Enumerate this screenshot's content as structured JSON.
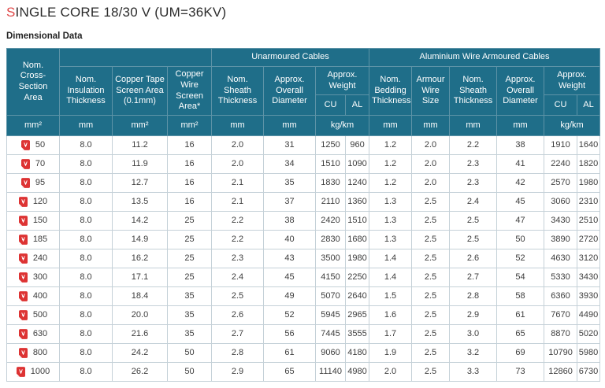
{
  "page": {
    "title_accent": "S",
    "title_rest": "INGLE CORE 18/30 V (UM=36KV)",
    "subtitle": "Dimensional Data"
  },
  "colors": {
    "header_teal": "#1f6e89",
    "header_border": "#5d93a7",
    "accent_red": "#e04848",
    "pdf_icon_red": "#dd3333",
    "area_label_teal": "#45798e",
    "data_border": "#c5d1d8"
  },
  "icons": {
    "pdf": "pdf-file-icon"
  },
  "table": {
    "groups": {
      "unarmoured": "Unarmoured Cables",
      "armoured": "Aluminium Wire Armoured Cables"
    },
    "columns": {
      "cross_section": "Nom. Cross-Section Area",
      "insulation": "Nom. Insulation Thickness",
      "copper_tape": "Copper Tape Screen Area (0.1mm)",
      "copper_wire": "Copper Wire Screen Area*",
      "sheath_unarmoured": "Nom. Sheath Thickness",
      "diameter_unarmoured": "Approx. Overall Diameter",
      "weight_unarmoured": "Approx. Weight",
      "cu": "CU",
      "al": "AL",
      "bedding": "Nom. Bedding Thickness",
      "armour_wire": "Armour Wire Size",
      "sheath_armoured": "Nom. Sheath Thickness",
      "diameter_armoured": "Approx. Overall Diameter",
      "weight_armoured": "Approx. Weight"
    },
    "units": [
      "mm²",
      "mm",
      "mm²",
      "mm²",
      "mm",
      "mm",
      "kg/km",
      "mm",
      "mm",
      "mm",
      "mm",
      "kg/km"
    ],
    "rows": [
      {
        "area": "50",
        "values": [
          "8.0",
          "11.2",
          "16",
          "2.0",
          "31",
          "1250",
          "960",
          "1.2",
          "2.0",
          "2.2",
          "38",
          "1910",
          "1640"
        ]
      },
      {
        "area": "70",
        "values": [
          "8.0",
          "11.9",
          "16",
          "2.0",
          "34",
          "1510",
          "1090",
          "1.2",
          "2.0",
          "2.3",
          "41",
          "2240",
          "1820"
        ]
      },
      {
        "area": "95",
        "values": [
          "8.0",
          "12.7",
          "16",
          "2.1",
          "35",
          "1830",
          "1240",
          "1.2",
          "2.0",
          "2.3",
          "42",
          "2570",
          "1980"
        ]
      },
      {
        "area": "120",
        "values": [
          "8.0",
          "13.5",
          "16",
          "2.1",
          "37",
          "2110",
          "1360",
          "1.3",
          "2.5",
          "2.4",
          "45",
          "3060",
          "2310"
        ]
      },
      {
        "area": "150",
        "values": [
          "8.0",
          "14.2",
          "25",
          "2.2",
          "38",
          "2420",
          "1510",
          "1.3",
          "2.5",
          "2.5",
          "47",
          "3430",
          "2510"
        ]
      },
      {
        "area": "185",
        "values": [
          "8.0",
          "14.9",
          "25",
          "2.2",
          "40",
          "2830",
          "1680",
          "1.3",
          "2.5",
          "2.5",
          "50",
          "3890",
          "2720"
        ]
      },
      {
        "area": "240",
        "values": [
          "8.0",
          "16.2",
          "25",
          "2.3",
          "43",
          "3500",
          "1980",
          "1.4",
          "2.5",
          "2.6",
          "52",
          "4630",
          "3120"
        ]
      },
      {
        "area": "300",
        "values": [
          "8.0",
          "17.1",
          "25",
          "2.4",
          "45",
          "4150",
          "2250",
          "1.4",
          "2.5",
          "2.7",
          "54",
          "5330",
          "3430"
        ]
      },
      {
        "area": "400",
        "values": [
          "8.0",
          "18.4",
          "35",
          "2.5",
          "49",
          "5070",
          "2640",
          "1.5",
          "2.5",
          "2.8",
          "58",
          "6360",
          "3930"
        ]
      },
      {
        "area": "500",
        "values": [
          "8.0",
          "20.0",
          "35",
          "2.6",
          "52",
          "5945",
          "2965",
          "1.6",
          "2.5",
          "2.9",
          "61",
          "7670",
          "4490"
        ]
      },
      {
        "area": "630",
        "values": [
          "8.0",
          "21.6",
          "35",
          "2.7",
          "56",
          "7445",
          "3555",
          "1.7",
          "2.5",
          "3.0",
          "65",
          "8870",
          "5020"
        ]
      },
      {
        "area": "800",
        "values": [
          "8.0",
          "24.2",
          "50",
          "2.8",
          "61",
          "9060",
          "4180",
          "1.9",
          "2.5",
          "3.2",
          "69",
          "10790",
          "5980"
        ]
      },
      {
        "area": "1000",
        "values": [
          "8.0",
          "26.2",
          "50",
          "2.9",
          "65",
          "11140",
          "4980",
          "2.0",
          "2.5",
          "3.3",
          "73",
          "12860",
          "6730"
        ]
      }
    ]
  }
}
